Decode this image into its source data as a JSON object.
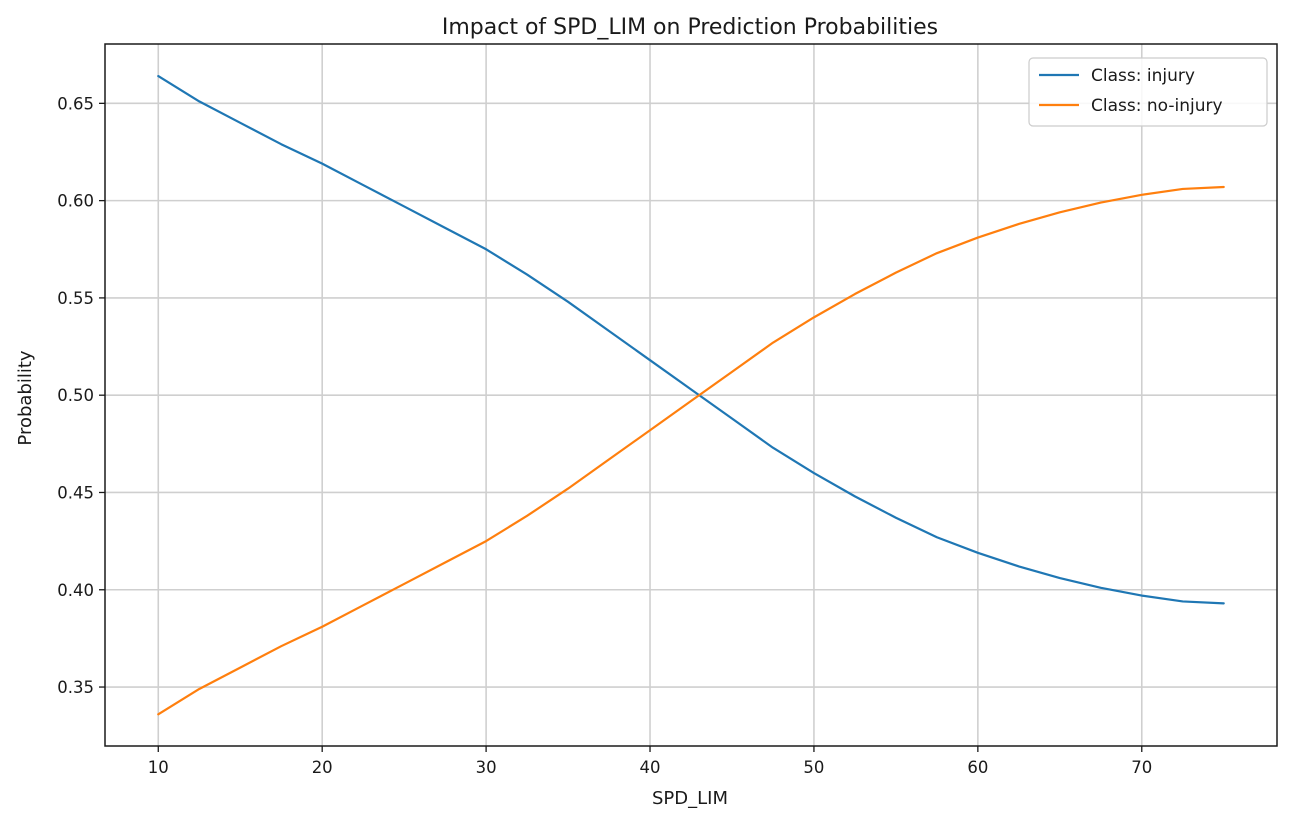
{
  "chart_data": {
    "type": "line",
    "title": "Impact of SPD_LIM on Prediction Probabilities",
    "xlabel": "SPD_LIM",
    "ylabel": "Probability",
    "xlim": [
      6.75,
      78.25
    ],
    "ylim": [
      0.3197,
      0.6805
    ],
    "xticks": [
      10,
      20,
      30,
      40,
      50,
      60,
      70
    ],
    "xtick_labels": [
      "10",
      "20",
      "30",
      "40",
      "50",
      "60",
      "70"
    ],
    "yticks": [
      0.35,
      0.4,
      0.45,
      0.5,
      0.55,
      0.6,
      0.65
    ],
    "ytick_labels": [
      "0.35",
      "0.40",
      "0.45",
      "0.50",
      "0.55",
      "0.60",
      "0.65"
    ],
    "grid": true,
    "legend_position": "top-right",
    "x": [
      10,
      12.5,
      15,
      17.5,
      20,
      22.5,
      25,
      27.5,
      30,
      32.5,
      35,
      37.5,
      40,
      42.5,
      45,
      47.5,
      50,
      52.5,
      55,
      57.5,
      60,
      62.5,
      65,
      67.5,
      70,
      72.5,
      75
    ],
    "series": [
      {
        "name": "Class: injury",
        "color": "#1f77b4",
        "values": [
          0.664,
          0.651,
          0.64,
          0.629,
          0.619,
          0.608,
          0.597,
          0.586,
          0.575,
          0.562,
          0.548,
          0.533,
          0.518,
          0.503,
          0.488,
          0.473,
          0.46,
          0.448,
          0.437,
          0.427,
          0.419,
          0.412,
          0.406,
          0.401,
          0.397,
          0.394,
          0.393
        ]
      },
      {
        "name": "Class: no-injury",
        "color": "#ff7f0e",
        "values": [
          0.336,
          0.349,
          0.36,
          0.371,
          0.381,
          0.392,
          0.403,
          0.414,
          0.425,
          0.438,
          0.452,
          0.467,
          0.482,
          0.497,
          0.512,
          0.527,
          0.54,
          0.552,
          0.563,
          0.573,
          0.581,
          0.588,
          0.594,
          0.599,
          0.603,
          0.606,
          0.607
        ]
      }
    ]
  }
}
